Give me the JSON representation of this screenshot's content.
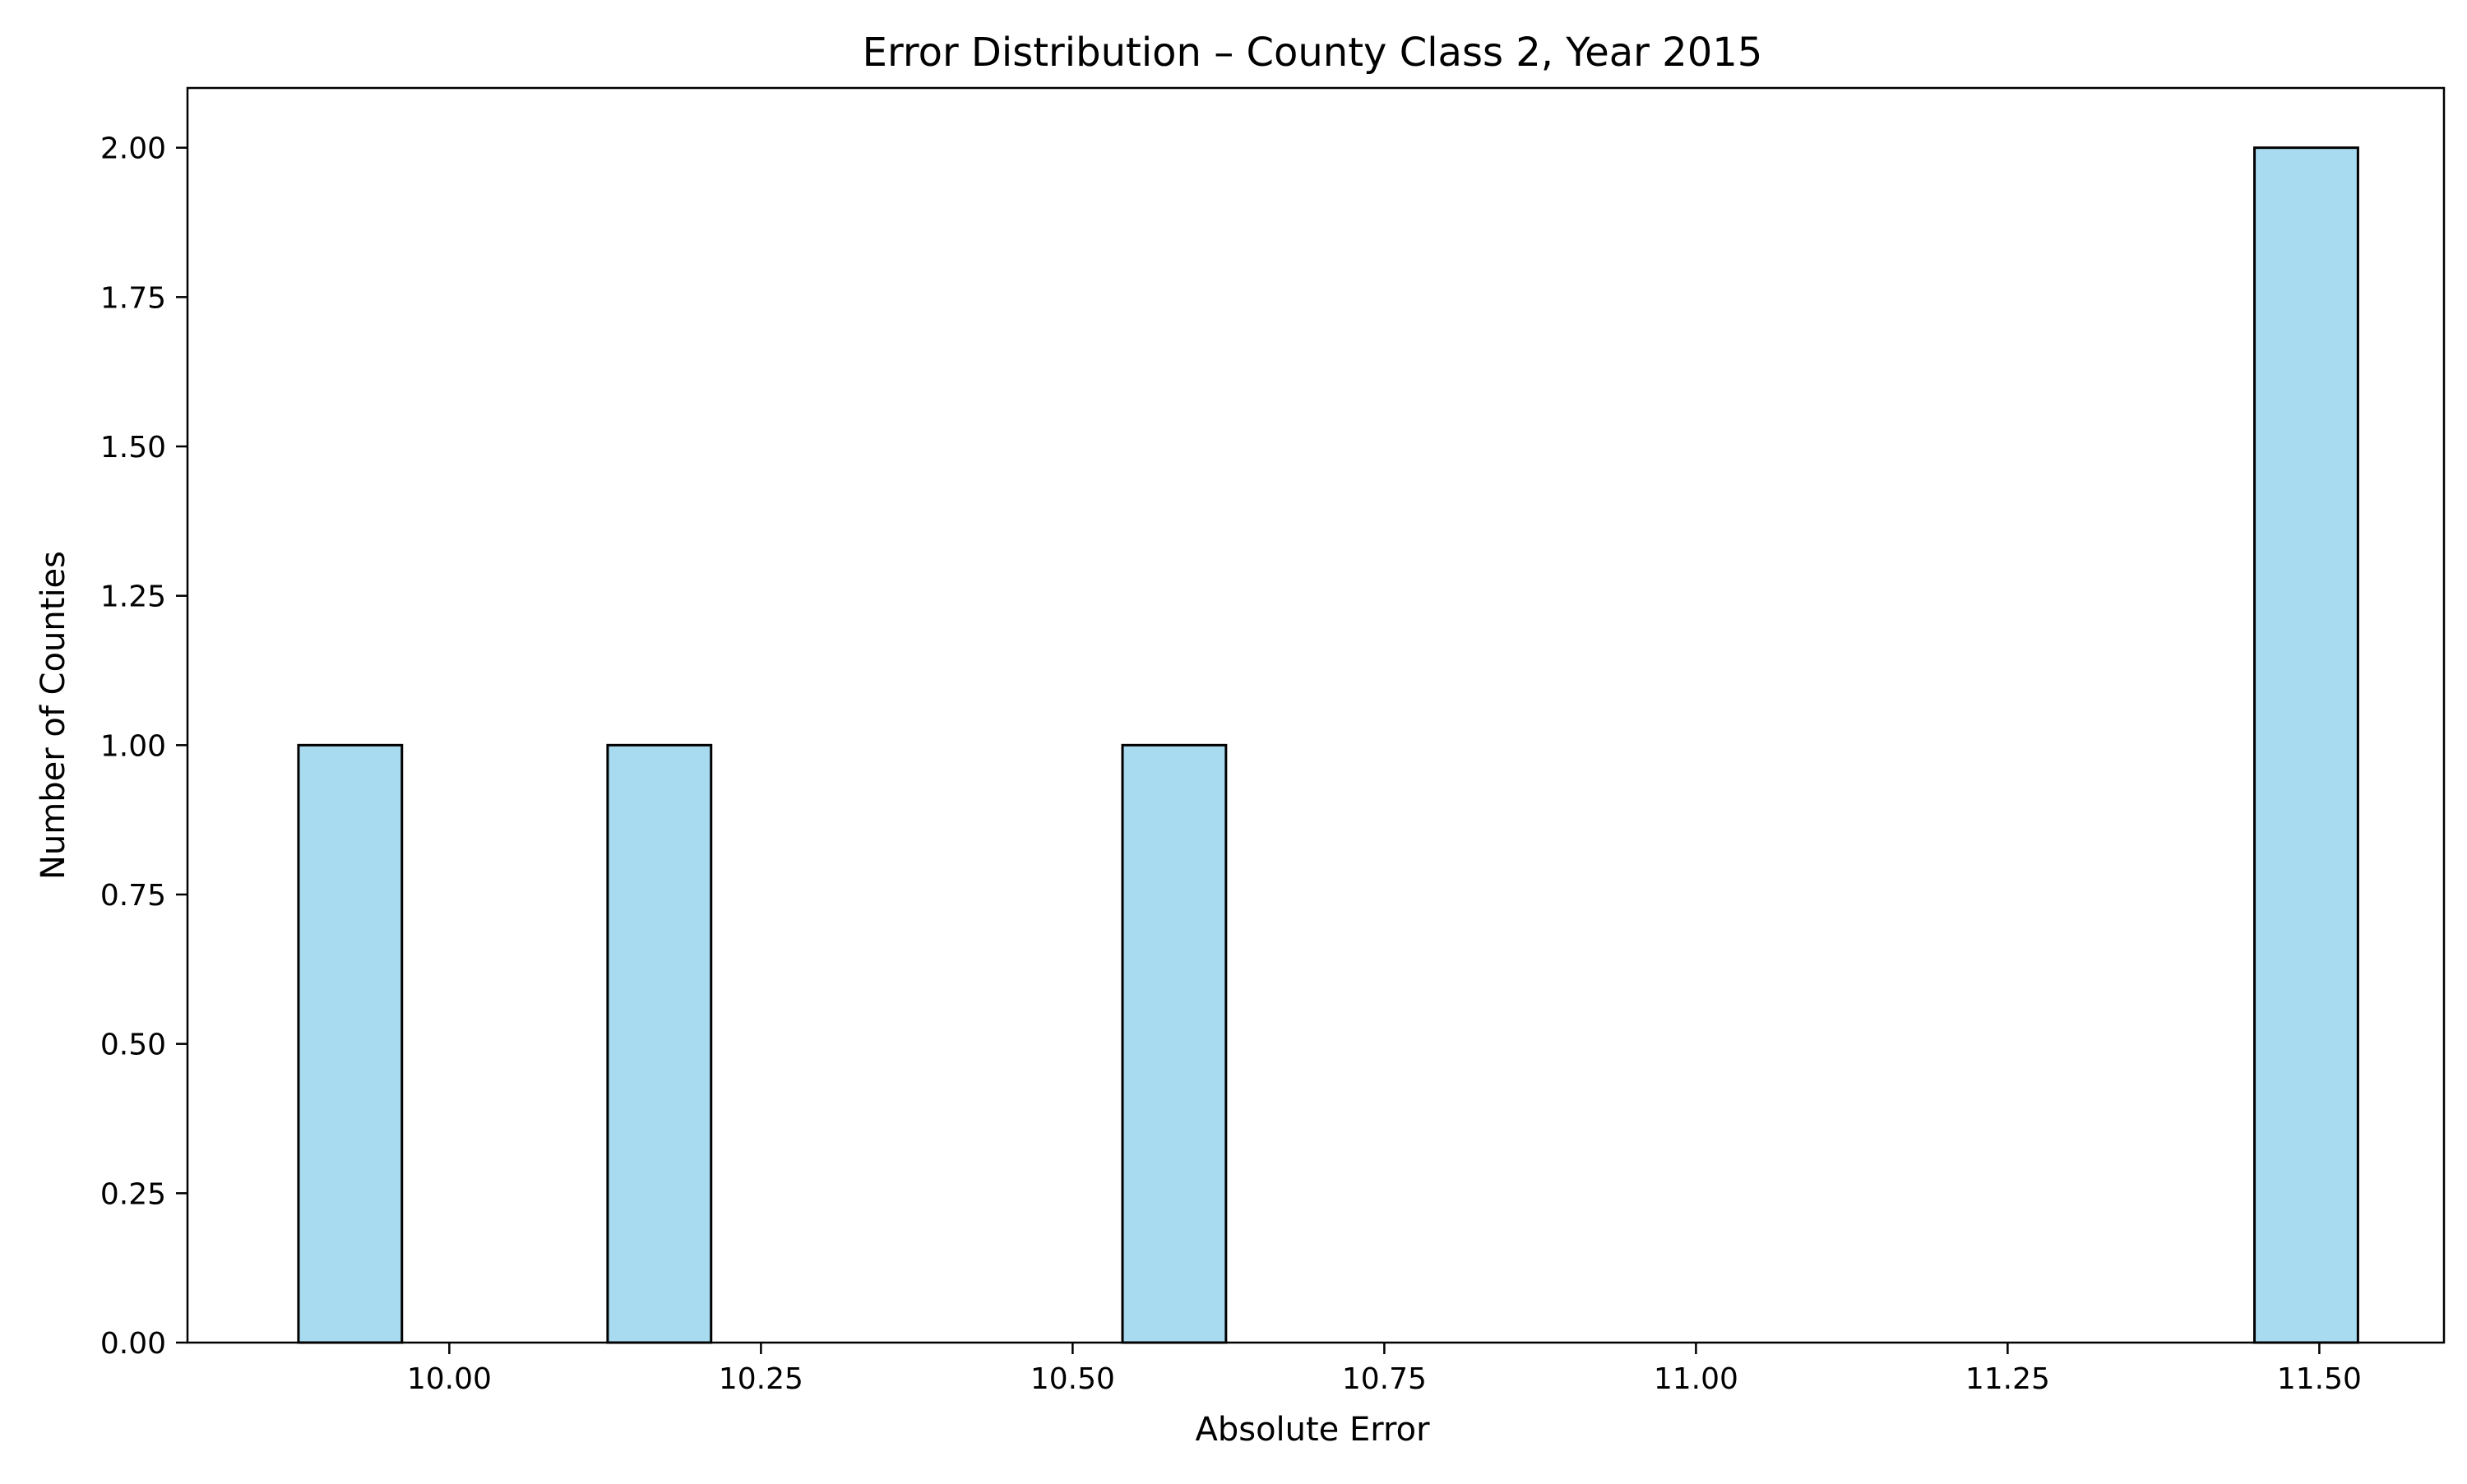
{
  "chart_data": {
    "type": "bar",
    "title": "Error Distribution – County Class 2, Year 2015",
    "xlabel": "Absolute Error",
    "ylabel": "Number of Counties",
    "xlim": [
      9.79,
      11.6
    ],
    "ylim": [
      0,
      2.1
    ],
    "bin_width": 0.0825,
    "bins": [
      {
        "start": 9.879,
        "end": 9.962,
        "count": 1
      },
      {
        "start": 10.127,
        "end": 10.21,
        "count": 1
      },
      {
        "start": 10.54,
        "end": 10.623,
        "count": 1
      },
      {
        "start": 11.448,
        "end": 11.531,
        "count": 2
      }
    ],
    "x_ticks": [
      {
        "value": 10.0,
        "label": "10.00"
      },
      {
        "value": 10.25,
        "label": "10.25"
      },
      {
        "value": 10.5,
        "label": "10.50"
      },
      {
        "value": 10.75,
        "label": "10.75"
      },
      {
        "value": 11.0,
        "label": "11.00"
      },
      {
        "value": 11.25,
        "label": "11.25"
      },
      {
        "value": 11.5,
        "label": "11.50"
      }
    ],
    "y_ticks": [
      {
        "value": 0.0,
        "label": "0.00"
      },
      {
        "value": 0.25,
        "label": "0.25"
      },
      {
        "value": 0.5,
        "label": "0.50"
      },
      {
        "value": 0.75,
        "label": "0.75"
      },
      {
        "value": 1.0,
        "label": "1.00"
      },
      {
        "value": 1.25,
        "label": "1.25"
      },
      {
        "value": 1.5,
        "label": "1.50"
      },
      {
        "value": 1.75,
        "label": "1.75"
      },
      {
        "value": 2.0,
        "label": "2.00"
      }
    ],
    "grid": false,
    "legend": "none",
    "colors": {
      "bar_fill": "#a8dbf0",
      "bar_edge": "#000000",
      "axes": "#000000"
    }
  }
}
